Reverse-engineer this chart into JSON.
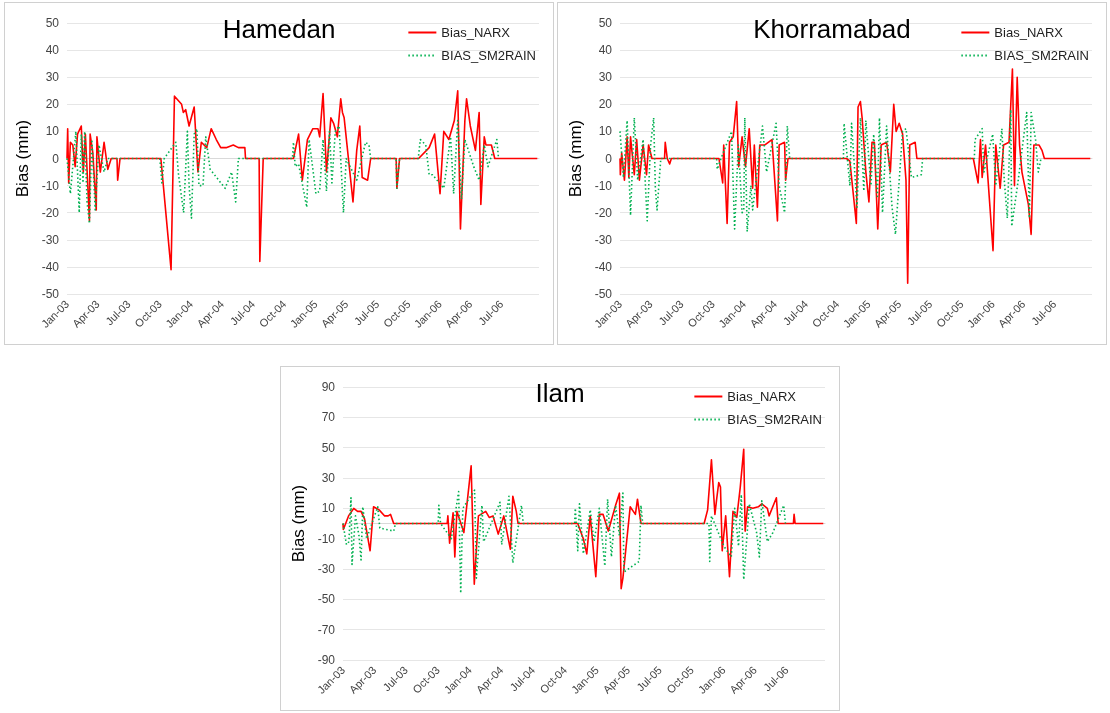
{
  "chart_data": [
    {
      "type": "line",
      "title": "Hamedan",
      "ylabel": "Bias (mm)",
      "xlim": [
        "2003-01-01",
        "2006-10-20"
      ],
      "ylim": [
        -50,
        50
      ],
      "yticks": [
        -50,
        -40,
        -30,
        -20,
        -10,
        0,
        10,
        20,
        30,
        40,
        50
      ],
      "xticks": [
        {
          "value": "2003-01-01",
          "label": "Jan-03"
        },
        {
          "value": "2003-04-01",
          "label": "Apr-03"
        },
        {
          "value": "2003-07-01",
          "label": "Jul-03"
        },
        {
          "value": "2003-10-01",
          "label": "Oct-03"
        },
        {
          "value": "2004-01-01",
          "label": "Jan-04"
        },
        {
          "value": "2004-04-01",
          "label": "Apr-04"
        },
        {
          "value": "2004-07-01",
          "label": "Jul-04"
        },
        {
          "value": "2004-10-01",
          "label": "Oct-04"
        },
        {
          "value": "2005-01-01",
          "label": "Jan-05"
        },
        {
          "value": "2005-04-01",
          "label": "Apr-05"
        },
        {
          "value": "2005-07-01",
          "label": "Jul-05"
        },
        {
          "value": "2005-10-01",
          "label": "Oct-05"
        },
        {
          "value": "2006-01-01",
          "label": "Jan-06"
        },
        {
          "value": "2006-04-01",
          "label": "Apr-06"
        },
        {
          "value": "2006-07-01",
          "label": "Jul-06"
        }
      ],
      "grid": "y",
      "legend": "top right",
      "series": [
        {
          "name": "Bias_NARX",
          "color": "#ff0000",
          "line_style": "solid",
          "x": [
            "2003-01-01",
            "2003-01-03",
            "2003-01-06",
            "2003-01-11",
            "2003-01-18",
            "2003-01-25",
            "2003-02-01",
            "2003-02-12",
            "2003-02-18",
            "2003-02-24",
            "2003-03-08",
            "2003-03-10",
            "2003-03-18",
            "2003-03-28",
            "2003-03-30",
            "2003-04-09",
            "2003-04-20",
            "2003-05-01",
            "2003-05-11",
            "2003-05-28",
            "2003-05-30",
            "2003-06-06",
            "2003-10-04",
            "2003-11-03",
            "2003-11-13",
            "2003-12-04",
            "2003-12-09",
            "2003-12-16",
            "2003-12-26",
            "2004-01-10",
            "2004-01-21",
            "2004-01-31",
            "2004-02-16",
            "2004-02-29",
            "2004-03-15",
            "2004-03-28",
            "2004-04-13",
            "2004-05-04",
            "2004-05-19",
            "2004-06-07",
            "2004-06-09",
            "2004-07-19",
            "2004-07-21",
            "2004-07-31",
            "2004-10-28",
            "2004-11-12",
            "2004-11-23",
            "2004-12-08",
            "2004-12-24",
            "2005-01-08",
            "2005-01-13",
            "2005-01-23",
            "2005-02-02",
            "2005-02-15",
            "2005-02-23",
            "2005-03-06",
            "2005-03-16",
            "2005-03-21",
            "2005-03-26",
            "2005-04-21",
            "2005-05-02",
            "2005-05-11",
            "2005-05-18",
            "2005-06-03",
            "2005-06-12",
            "2005-08-26",
            "2005-08-28",
            "2005-09-05",
            "2005-10-31",
            "2005-12-01",
            "2005-12-17",
            "2006-01-02",
            "2006-01-13",
            "2006-01-28",
            "2006-02-13",
            "2006-02-23",
            "2006-03-03",
            "2006-03-16",
            "2006-03-21",
            "2006-04-01",
            "2006-04-16",
            "2006-04-27",
            "2006-05-02",
            "2006-05-12",
            "2006-05-17",
            "2006-06-02",
            "2006-06-12",
            "2006-10-15"
          ],
          "values": [
            0,
            11,
            -9,
            6,
            5,
            -3,
            9,
            12,
            -5,
            9,
            -23,
            9,
            2,
            -19,
            8,
            -5,
            6,
            -4,
            0,
            0,
            -8,
            0,
            0,
            -41,
            23,
            20,
            17,
            18,
            12,
            19,
            -5,
            6,
            4,
            11,
            7,
            4,
            4,
            5,
            4,
            4,
            0,
            0,
            -38,
            0,
            0,
            9,
            -8,
            7,
            11,
            11,
            8,
            24,
            -5,
            15,
            13,
            8,
            22,
            17,
            15,
            -16,
            3,
            12,
            -7,
            -8,
            0,
            0,
            -11,
            0,
            0,
            4,
            9,
            -13,
            10,
            7,
            14,
            25,
            -26,
            14,
            22,
            12,
            3,
            17,
            -17,
            8,
            5,
            5,
            0,
            0
          ]
        },
        {
          "name": "BIAS_SM2RAIN",
          "color": "#00b050",
          "line_style": "dotted",
          "x": [
            "2003-01-01",
            "2003-01-11",
            "2003-01-27",
            "2003-02-06",
            "2003-02-12",
            "2003-02-17",
            "2003-02-22",
            "2003-03-01",
            "2003-03-08",
            "2003-03-15",
            "2003-03-25",
            "2003-04-05",
            "2003-04-20",
            "2003-05-01",
            "2003-10-01",
            "2003-10-07",
            "2003-10-14",
            "2003-11-17",
            "2003-11-25",
            "2003-12-10",
            "2003-12-21",
            "2003-12-26",
            "2004-01-02",
            "2004-01-10",
            "2004-01-18",
            "2004-01-24",
            "2004-02-05",
            "2004-02-13",
            "2004-02-26",
            "2004-04-10",
            "2004-04-29",
            "2004-05-11",
            "2004-05-19",
            "2004-10-25",
            "2004-10-28",
            "2004-11-02",
            "2004-11-12",
            "2004-12-06",
            "2004-12-13",
            "2005-01-02",
            "2005-01-13",
            "2005-01-23",
            "2005-02-02",
            "2005-02-11",
            "2005-02-18",
            "2005-02-28",
            "2005-03-11",
            "2005-03-24",
            "2005-04-01",
            "2005-05-02",
            "2005-05-28",
            "2005-06-07",
            "2005-06-12",
            "2005-08-26",
            "2005-08-28",
            "2005-09-05",
            "2005-10-30",
            "2005-11-05",
            "2005-11-21",
            "2005-12-01",
            "2005-12-11",
            "2006-01-13",
            "2006-02-02",
            "2006-02-11",
            "2006-02-23",
            "2006-03-06",
            "2006-03-16",
            "2006-04-11",
            "2006-04-27",
            "2006-05-12",
            "2006-05-23",
            "2006-06-18",
            "2006-06-23"
          ],
          "values": [
            0,
            -13,
            10,
            -20,
            9,
            -9,
            10,
            -16,
            -24,
            7,
            -19,
            5,
            -5,
            0,
            0,
            -9,
            0,
            6,
            -6,
            -20,
            10,
            -10,
            -22,
            9,
            11,
            -10,
            -10,
            8,
            -4,
            -11,
            -5,
            -16,
            0,
            0,
            6,
            -3,
            -2,
            -18,
            7,
            -13,
            -12,
            7,
            -12,
            10,
            -9,
            10,
            12,
            -20,
            0,
            -8,
            6,
            5,
            0,
            0,
            -11,
            0,
            0,
            7,
            5,
            -6,
            -6,
            -11,
            8,
            -13,
            14,
            -15,
            7,
            -3,
            -8,
            5,
            -3,
            7,
            0
          ]
        }
      ]
    },
    {
      "type": "line",
      "title": "Khorramabad",
      "ylabel": "Bias (mm)",
      "xlim": [
        "2003-01-01",
        "2006-10-20"
      ],
      "ylim": [
        -50,
        50
      ],
      "yticks": [
        -50,
        -40,
        -30,
        -20,
        -10,
        0,
        10,
        20,
        30,
        40,
        50
      ],
      "xticks": [
        {
          "value": "2003-01-01",
          "label": "Jan-03"
        },
        {
          "value": "2003-04-01",
          "label": "Apr-03"
        },
        {
          "value": "2003-07-01",
          "label": "Jul-03"
        },
        {
          "value": "2003-10-01",
          "label": "Oct-03"
        },
        {
          "value": "2004-01-01",
          "label": "Jan-04"
        },
        {
          "value": "2004-04-01",
          "label": "Apr-04"
        },
        {
          "value": "2004-07-01",
          "label": "Jul-04"
        },
        {
          "value": "2004-10-01",
          "label": "Oct-04"
        },
        {
          "value": "2005-01-01",
          "label": "Jan-05"
        },
        {
          "value": "2005-04-01",
          "label": "Apr-05"
        },
        {
          "value": "2005-07-01",
          "label": "Jul-05"
        },
        {
          "value": "2005-10-01",
          "label": "Oct-05"
        },
        {
          "value": "2006-01-01",
          "label": "Jan-06"
        },
        {
          "value": "2006-04-01",
          "label": "Apr-06"
        },
        {
          "value": "2006-07-01",
          "label": "Jul-06"
        }
      ],
      "grid": "y",
      "legend": "top right",
      "series": [
        {
          "name": "Bias_NARX",
          "color": "#ff0000",
          "line_style": "solid",
          "x": [
            "2003-01-01",
            "2003-01-02",
            "2003-01-06",
            "2003-01-14",
            "2003-01-22",
            "2003-01-27",
            "2003-02-01",
            "2003-02-12",
            "2003-02-19",
            "2003-02-27",
            "2003-03-10",
            "2003-03-20",
            "2003-03-26",
            "2003-04-05",
            "2003-05-12",
            "2003-05-14",
            "2003-05-20",
            "2003-05-27",
            "2003-06-01",
            "2003-10-19",
            "2003-10-30",
            "2003-11-02",
            "2003-11-12",
            "2003-11-19",
            "2003-11-30",
            "2003-12-10",
            "2003-12-16",
            "2003-12-26",
            "2004-01-05",
            "2004-01-16",
            "2004-01-26",
            "2004-01-31",
            "2004-02-09",
            "2004-02-16",
            "2004-03-02",
            "2004-03-23",
            "2004-04-08",
            "2004-04-13",
            "2004-04-29",
            "2004-05-02",
            "2004-05-09",
            "2004-10-28",
            "2004-11-07",
            "2004-11-26",
            "2004-12-01",
            "2004-12-08",
            "2004-12-13",
            "2004-12-24",
            "2005-01-02",
            "2005-01-11",
            "2005-01-18",
            "2005-01-28",
            "2005-02-07",
            "2005-02-23",
            "2005-03-06",
            "2005-03-16",
            "2005-03-23",
            "2005-04-01",
            "2005-04-11",
            "2005-04-21",
            "2005-04-26",
            "2005-05-02",
            "2005-05-18",
            "2005-05-23",
            "2005-11-05",
            "2005-11-19",
            "2005-11-26",
            "2005-12-01",
            "2005-12-11",
            "2006-01-02",
            "2006-01-10",
            "2006-01-23",
            "2006-02-02",
            "2006-02-18",
            "2006-02-28",
            "2006-03-06",
            "2006-03-14",
            "2006-03-21",
            "2006-03-28",
            "2006-04-16",
            "2006-04-24",
            "2006-05-02",
            "2006-05-17",
            "2006-05-26",
            "2006-06-02",
            "2006-10-15"
          ],
          "values": [
            0,
            -6,
            2,
            -8,
            8,
            -7,
            8,
            -6,
            7,
            -8,
            5,
            -6,
            5,
            0,
            0,
            6,
            0,
            -2,
            0,
            0,
            -9,
            5,
            -24,
            6,
            8,
            21,
            -3,
            8,
            -3,
            11,
            -11,
            5,
            -18,
            5,
            5,
            7,
            -23,
            5,
            6,
            -8,
            0,
            0,
            -1,
            -24,
            19,
            21,
            15,
            -5,
            -16,
            6,
            6,
            -26,
            5,
            6,
            -5,
            20,
            10,
            13,
            9,
            -8,
            -46,
            5,
            6,
            0,
            0,
            -9,
            7,
            -7,
            5,
            -34,
            5,
            -11,
            5,
            6,
            33,
            -10,
            30,
            5,
            -5,
            -17,
            -28,
            5,
            5,
            3,
            0,
            0
          ]
        },
        {
          "name": "BIAS_SM2RAIN",
          "color": "#00b050",
          "line_style": "dotted",
          "x": [
            "2003-01-01",
            "2003-01-11",
            "2003-01-22",
            "2003-02-01",
            "2003-02-12",
            "2003-02-22",
            "2003-03-10",
            "2003-03-22",
            "2003-04-01",
            "2003-04-10",
            "2003-04-15",
            "2003-04-20",
            "2003-05-01",
            "2003-10-12",
            "2003-10-14",
            "2003-10-25",
            "2003-11-25",
            "2003-12-04",
            "2003-12-15",
            "2003-12-26",
            "2003-12-31",
            "2004-01-03",
            "2004-01-10",
            "2004-01-21",
            "2004-01-26",
            "2004-02-24",
            "2004-03-07",
            "2004-04-04",
            "2004-04-13",
            "2004-04-29",
            "2004-05-07",
            "2004-05-14",
            "2004-10-19",
            "2004-10-21",
            "2004-11-07",
            "2004-11-12",
            "2004-11-28",
            "2004-12-08",
            "2004-12-18",
            "2004-12-24",
            "2005-01-08",
            "2005-01-16",
            "2005-01-27",
            "2005-02-02",
            "2005-02-11",
            "2005-02-23",
            "2005-03-11",
            "2005-03-21",
            "2005-04-11",
            "2005-04-21",
            "2005-05-07",
            "2005-06-05",
            "2005-06-09",
            "2005-11-08",
            "2005-11-10",
            "2005-12-01",
            "2005-12-06",
            "2006-01-01",
            "2006-01-10",
            "2006-01-28",
            "2006-02-04",
            "2006-02-13",
            "2006-02-23",
            "2006-02-26",
            "2006-03-16",
            "2006-04-11",
            "2006-04-19",
            "2006-04-24",
            "2006-05-07",
            "2006-05-15",
            "2006-05-23"
          ],
          "values": [
            10,
            -7,
            14,
            -21,
            15,
            -8,
            7,
            -23,
            5,
            15,
            -11,
            -19,
            0,
            0,
            -4,
            0,
            10,
            -26,
            5,
            -20,
            -19,
            15,
            -27,
            -10,
            -19,
            12,
            -5,
            13,
            -10,
            -20,
            12,
            0,
            0,
            13,
            -10,
            13,
            -18,
            15,
            -12,
            14,
            -10,
            9,
            -14,
            15,
            -20,
            12,
            -18,
            -28,
            10,
            11,
            -7,
            -6,
            0,
            0,
            7,
            11,
            -5,
            9,
            -10,
            11,
            -8,
            -22,
            18,
            -25,
            -9,
            17,
            -22,
            17,
            7,
            -5,
            0
          ]
        }
      ]
    },
    {
      "type": "line",
      "title": "Ilam",
      "ylabel": "Bias (mm)",
      "xlim": [
        "2003-01-01",
        "2006-10-20"
      ],
      "ylim": [
        -90,
        90
      ],
      "yticks": [
        -90,
        -70,
        -50,
        -30,
        -10,
        10,
        30,
        50,
        70,
        90
      ],
      "xticks": [
        {
          "value": "2003-01-01",
          "label": "Jan-03"
        },
        {
          "value": "2003-04-01",
          "label": "Apr-03"
        },
        {
          "value": "2003-07-01",
          "label": "Jul-03"
        },
        {
          "value": "2003-10-01",
          "label": "Oct-03"
        },
        {
          "value": "2004-01-01",
          "label": "Jan-04"
        },
        {
          "value": "2004-04-01",
          "label": "Apr-04"
        },
        {
          "value": "2004-07-01",
          "label": "Jul-04"
        },
        {
          "value": "2004-10-01",
          "label": "Oct-04"
        },
        {
          "value": "2005-01-01",
          "label": "Jan-05"
        },
        {
          "value": "2005-04-01",
          "label": "Apr-05"
        },
        {
          "value": "2005-07-01",
          "label": "Jul-05"
        },
        {
          "value": "2005-10-01",
          "label": "Oct-05"
        },
        {
          "value": "2006-01-01",
          "label": "Jan-06"
        },
        {
          "value": "2006-04-01",
          "label": "Apr-06"
        },
        {
          "value": "2006-07-01",
          "label": "Jul-06"
        }
      ],
      "grid": "y",
      "legend": "top right",
      "series": [
        {
          "name": "Bias_NARX",
          "color": "#ff0000",
          "line_style": "solid",
          "x": [
            "2003-01-01",
            "2003-01-02",
            "2003-01-17",
            "2003-02-01",
            "2003-02-12",
            "2003-02-22",
            "2003-03-04",
            "2003-03-20",
            "2003-03-30",
            "2003-04-15",
            "2003-05-01",
            "2003-05-11",
            "2003-05-18",
            "2003-05-27",
            "2003-10-28",
            "2003-10-30",
            "2003-11-04",
            "2003-11-14",
            "2003-11-19",
            "2003-11-25",
            "2003-12-15",
            "2004-01-05",
            "2004-01-14",
            "2004-01-26",
            "2004-02-16",
            "2004-02-26",
            "2004-03-08",
            "2004-03-23",
            "2004-04-08",
            "2004-04-27",
            "2004-05-04",
            "2004-05-14",
            "2004-05-19",
            "2004-11-07",
            "2004-11-23",
            "2004-12-03",
            "2004-12-13",
            "2004-12-29",
            "2005-01-08",
            "2005-01-19",
            "2005-02-03",
            "2005-02-24",
            "2005-03-07",
            "2005-03-12",
            "2005-03-17",
            "2005-04-07",
            "2005-04-22",
            "2005-04-28",
            "2005-05-08",
            "2005-11-06",
            "2005-11-16",
            "2005-11-27",
            "2005-12-07",
            "2005-12-12",
            "2005-12-18",
            "2005-12-23",
            "2005-12-28",
            "2006-01-07",
            "2006-01-18",
            "2006-01-28",
            "2006-02-08",
            "2006-02-18",
            "2006-02-28",
            "2006-03-04",
            "2006-03-11",
            "2006-03-26",
            "2006-04-11",
            "2006-04-21",
            "2006-05-07",
            "2006-05-12",
            "2006-06-02",
            "2006-06-07",
            "2006-07-21",
            "2006-07-23",
            "2006-07-26",
            "2006-10-15"
          ],
          "values": [
            0,
            -4,
            5,
            10,
            8,
            8,
            3,
            -18,
            11,
            9,
            5,
            5,
            6,
            0,
            0,
            5,
            -13,
            7,
            -22,
            8,
            -6,
            38,
            -40,
            5,
            8,
            4,
            5,
            -7,
            5,
            -17,
            18,
            8,
            0,
            0,
            -10,
            -20,
            5,
            -35,
            6,
            6,
            -5,
            12,
            20,
            -43,
            -36,
            11,
            6,
            16,
            0,
            0,
            9,
            42,
            6,
            16,
            27,
            24,
            -18,
            5,
            -35,
            8,
            4,
            24,
            49,
            -5,
            11,
            10,
            11,
            13,
            10,
            5,
            17,
            0,
            0,
            6,
            0,
            0
          ]
        },
        {
          "name": "BIAS_SM2RAIN",
          "color": "#00b050",
          "line_style": "dotted",
          "x": [
            "2003-01-01",
            "2003-01-11",
            "2003-01-18",
            "2003-01-24",
            "2003-01-27",
            "2003-02-06",
            "2003-02-16",
            "2003-02-22",
            "2003-02-27",
            "2003-03-10",
            "2003-04-11",
            "2003-04-17",
            "2003-05-27",
            "2003-06-01",
            "2003-10-02",
            "2003-10-04",
            "2003-10-09",
            "2003-11-09",
            "2003-11-30",
            "2003-12-06",
            "2003-12-12",
            "2004-01-15",
            "2004-01-20",
            "2004-02-05",
            "2004-02-10",
            "2004-03-28",
            "2004-04-02",
            "2004-04-23",
            "2004-05-04",
            "2004-05-29",
            "2004-06-03",
            "2004-10-29",
            "2004-10-31",
            "2004-11-07",
            "2004-11-12",
            "2004-11-23",
            "2004-12-13",
            "2004-12-24",
            "2005-01-08",
            "2005-01-24",
            "2005-02-01",
            "2005-02-12",
            "2005-02-24",
            "2005-03-07",
            "2005-03-17",
            "2005-03-20",
            "2005-05-03",
            "2005-05-08",
            "2005-05-13",
            "2005-11-20",
            "2005-11-22",
            "2005-11-27",
            "2006-01-02",
            "2006-01-23",
            "2006-02-02",
            "2006-02-13",
            "2006-02-21",
            "2006-02-28",
            "2006-03-16",
            "2006-04-06",
            "2006-04-14",
            "2006-04-21",
            "2006-05-07",
            "2006-05-23",
            "2006-06-23",
            "2006-06-28"
          ],
          "values": [
            0,
            -14,
            -12,
            17,
            -27,
            5,
            -8,
            -24,
            11,
            -10,
            11,
            -3,
            -5,
            0,
            0,
            12,
            0,
            -10,
            21,
            -46,
            10,
            22,
            -36,
            12,
            -12,
            14,
            -14,
            18,
            -26,
            12,
            0,
            0,
            10,
            -18,
            13,
            -20,
            9,
            -12,
            10,
            -28,
            16,
            -22,
            12,
            -8,
            20,
            -32,
            -25,
            12,
            0,
            0,
            -25,
            5,
            -15,
            -22,
            10,
            -15,
            19,
            -37,
            13,
            -6,
            -22,
            15,
            -12,
            -6,
            12,
            0
          ]
        }
      ]
    }
  ]
}
